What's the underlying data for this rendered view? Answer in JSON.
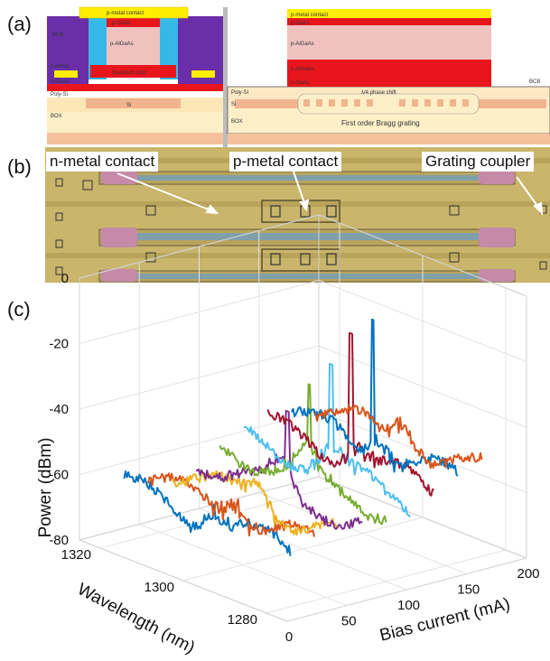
{
  "panels": {
    "a": "(a)",
    "b": "(b)",
    "c": "(c)"
  },
  "schematic": {
    "left_labels": [
      "p-metal contact",
      "p-GaAs",
      "p-AlGaAs",
      "Quantum dots",
      "n-metal",
      "n-GaAs",
      "Poly-Si",
      "Si",
      "BOX",
      "BCB"
    ],
    "right_labels": [
      "p-metal contact",
      "p-GaAs",
      "p-AlGaAs",
      "n-AlGaAs",
      "n-GaAs",
      "Poly-Si",
      "Si",
      "λ/4 phase shift",
      "First order Bragg grating",
      "BOX",
      "BCB"
    ]
  },
  "micrograph": {
    "callouts": {
      "n_metal": "n-metal contact",
      "p_metal": "p-metal contact",
      "grating": "Grating coupler"
    }
  },
  "colors": {
    "purple": "#6a2fa8",
    "red": "#e8151d",
    "pink": "#efc2c0",
    "yellow": "#ffee00",
    "cyan": "#35b8e6",
    "cream": "#fdf0c8",
    "salmon": "#f2b48f",
    "chip_gold": "#c9b56b"
  },
  "chart_data": {
    "type": "line",
    "xlabel": "Wavelength (nm)",
    "ylabel": "Bias current (mA)",
    "zlabel": "Power (dBm)",
    "x_ticks": [
      "1280",
      "1300",
      "1320"
    ],
    "y_ticks": [
      "0",
      "50",
      "100",
      "150",
      "200"
    ],
    "z_ticks": [
      "0",
      "-20",
      "-40",
      "-60",
      "-80"
    ],
    "xlim": [
      1275,
      1325
    ],
    "ylim": [
      0,
      200
    ],
    "zlim": [
      -80,
      0
    ],
    "grid": true,
    "series": [
      {
        "bias": 20,
        "color": "#0072bd",
        "baseline": -63,
        "peak": null
      },
      {
        "bias": 40,
        "color": "#d95319",
        "baseline": -63,
        "peak": null
      },
      {
        "bias": 60,
        "color": "#edb120",
        "baseline": -62,
        "peak": null
      },
      {
        "bias": 80,
        "color": "#7e2f8e",
        "baseline": -60,
        "peak": {
          "wavelength": 1298,
          "power": -35
        }
      },
      {
        "bias": 100,
        "color": "#77ac30",
        "baseline": -58,
        "peak": {
          "wavelength": 1298.5,
          "power": -29
        }
      },
      {
        "bias": 120,
        "color": "#4dbeee",
        "baseline": -57,
        "peak": {
          "wavelength": 1299,
          "power": -25
        }
      },
      {
        "bias": 140,
        "color": "#a2142f",
        "baseline": -56,
        "peak": {
          "wavelength": 1300,
          "power": -18
        }
      },
      {
        "bias": 160,
        "color": "#0072bd",
        "baseline": -55,
        "peak": {
          "wavelength": 1300.5,
          "power": -16
        }
      },
      {
        "bias": 180,
        "color": "#d95319",
        "baseline": -54,
        "peak": null
      }
    ]
  }
}
